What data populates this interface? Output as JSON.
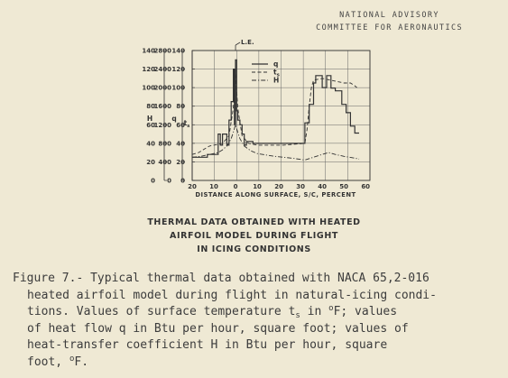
{
  "header": {
    "line1": "NATIONAL ADVISORY",
    "line2": "COMMITTEE FOR AERONAUTICS"
  },
  "chart_data": {
    "type": "line",
    "xlabel": "DISTANCE ALONG SURFACE, S/C, PERCENT",
    "x_ticks": [
      "20",
      "10",
      "0",
      "10",
      "20",
      "30",
      "40",
      "50",
      "60"
    ],
    "xlim": [
      -20,
      62
    ],
    "annotation": "L.E.",
    "axes": [
      {
        "label": "H",
        "ticks": [
          "140",
          "120",
          "100",
          "80",
          "60",
          "40",
          "20",
          "0"
        ],
        "ylim": [
          0,
          140
        ]
      },
      {
        "label": "q",
        "ticks": [
          "2800",
          "2400",
          "2000",
          "1600",
          "1200",
          "800",
          "400",
          "0"
        ],
        "ylim": [
          0,
          2800
        ]
      },
      {
        "label": "ts",
        "label_main": "t",
        "label_sub": "s",
        "ticks": [
          "140",
          "120",
          "100",
          "80",
          "60",
          "40",
          "20",
          "0"
        ],
        "ylim": [
          0,
          140
        ]
      }
    ],
    "legend": [
      {
        "name": "q",
        "style": "solid"
      },
      {
        "name": "ts",
        "name_main": "t",
        "name_sub": "s",
        "style": "dashed"
      },
      {
        "name": "H",
        "style": "dash-dot"
      }
    ],
    "series": [
      {
        "name": "q",
        "axis": "q",
        "style": "solid",
        "points": [
          [
            -20,
            500
          ],
          [
            -13,
            500
          ],
          [
            -13,
            560
          ],
          [
            -8,
            560
          ],
          [
            -8,
            1000
          ],
          [
            -7,
            1000
          ],
          [
            -7,
            760
          ],
          [
            -6,
            760
          ],
          [
            -6,
            1000
          ],
          [
            -4,
            1000
          ],
          [
            -4,
            760
          ],
          [
            -3,
            760
          ],
          [
            -3,
            1300
          ],
          [
            -2,
            1300
          ],
          [
            -2,
            1700
          ],
          [
            -1,
            1700
          ],
          [
            -1,
            2400
          ],
          [
            -0.5,
            2400
          ],
          [
            -0.5,
            1200
          ],
          [
            0,
            1200
          ],
          [
            0,
            2600
          ],
          [
            0.5,
            2600
          ],
          [
            0.5,
            1500
          ],
          [
            1,
            1500
          ],
          [
            1,
            1300
          ],
          [
            2,
            1300
          ],
          [
            2,
            1200
          ],
          [
            3,
            1200
          ],
          [
            3,
            1000
          ],
          [
            4,
            1000
          ],
          [
            4,
            760
          ],
          [
            5,
            760
          ],
          [
            5,
            840
          ],
          [
            8,
            840
          ],
          [
            8,
            800
          ],
          [
            32,
            800
          ],
          [
            32,
            1240
          ],
          [
            34,
            1240
          ],
          [
            34,
            1640
          ],
          [
            36,
            1640
          ],
          [
            36,
            2100
          ],
          [
            37,
            2100
          ],
          [
            37,
            2260
          ],
          [
            40,
            2260
          ],
          [
            40,
            2000
          ],
          [
            42,
            2000
          ],
          [
            42,
            2260
          ],
          [
            44,
            2260
          ],
          [
            44,
            1990
          ],
          [
            46,
            1990
          ],
          [
            46,
            1930
          ],
          [
            49,
            1930
          ],
          [
            49,
            1640
          ],
          [
            51,
            1640
          ],
          [
            51,
            1460
          ],
          [
            53,
            1460
          ],
          [
            53,
            1170
          ],
          [
            55,
            1170
          ],
          [
            55,
            1020
          ],
          [
            57,
            1020
          ]
        ]
      },
      {
        "name": "ts",
        "axis": "ts",
        "style": "dashed",
        "points": [
          [
            -20,
            28
          ],
          [
            -17,
            30
          ],
          [
            -15,
            33
          ],
          [
            -12,
            37
          ],
          [
            -10,
            38
          ],
          [
            -6,
            40
          ],
          [
            -3,
            48
          ],
          [
            -1,
            78
          ],
          [
            0,
            118
          ],
          [
            1,
            78
          ],
          [
            3,
            48
          ],
          [
            6,
            40
          ],
          [
            10,
            38
          ],
          [
            22,
            38
          ],
          [
            32,
            40
          ],
          [
            33,
            55
          ],
          [
            34,
            80
          ],
          [
            35,
            100
          ],
          [
            36,
            108
          ],
          [
            40,
            110
          ],
          [
            44,
            108
          ],
          [
            46,
            107
          ],
          [
            50,
            105
          ],
          [
            53,
            105
          ],
          [
            55,
            102
          ],
          [
            56,
            100
          ]
        ]
      },
      {
        "name": "H",
        "axis": "H",
        "style": "dash-dot",
        "points": [
          [
            -20,
            25
          ],
          [
            -16,
            26
          ],
          [
            -12,
            28
          ],
          [
            -8,
            30
          ],
          [
            -6,
            33
          ],
          [
            -4,
            37
          ],
          [
            -2,
            45
          ],
          [
            -1,
            52
          ],
          [
            0,
            60
          ],
          [
            1,
            52
          ],
          [
            2,
            45
          ],
          [
            4,
            37
          ],
          [
            7,
            32
          ],
          [
            10,
            29
          ],
          [
            18,
            26
          ],
          [
            26,
            24
          ],
          [
            32,
            22
          ],
          [
            36,
            25
          ],
          [
            40,
            28
          ],
          [
            43,
            30
          ],
          [
            46,
            28
          ],
          [
            50,
            26
          ],
          [
            55,
            24
          ],
          [
            57,
            23
          ]
        ]
      }
    ]
  },
  "caption": {
    "line1": "THERMAL DATA OBTAINED WITH HEATED",
    "line2": "AIRFOIL MODEL DURING FLIGHT",
    "line3": "IN ICING CONDITIONS"
  },
  "figure_text": {
    "l1": "Figure 7.- Typical thermal data obtained with NACA 65,2-016",
    "l2": "heated airfoil model during flight in natural-icing condi-",
    "l3a": "tions.  Values of surface temperature  t",
    "l3sub": "s",
    "l3b": "  in ",
    "l3deg": "o",
    "l3c": "F; values",
    "l4": "of heat flow  q  in Btu per hour, square foot; values of",
    "l5": "heat-transfer coefficient  H  in Btu per hour, square",
    "l6a": "foot, ",
    "l6deg": "o",
    "l6b": "F."
  },
  "colors": {
    "ink": "#333333",
    "paper": "#efe9d4"
  }
}
